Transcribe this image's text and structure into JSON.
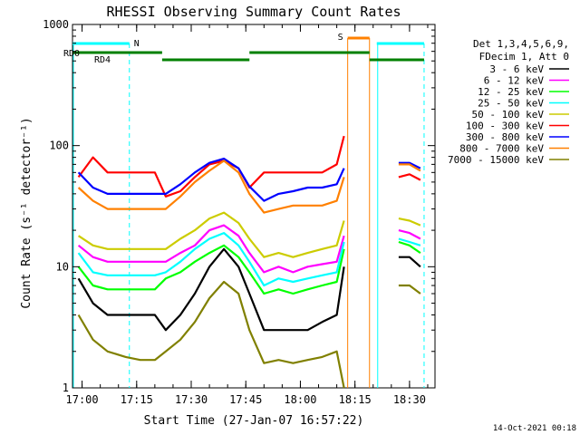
{
  "chart_data": {
    "type": "line",
    "title": "RHESSI Observing Summary Count Rates",
    "xlabel": "Start Time (27-Jan-07 16:57:22)",
    "ylabel": "Count Rate (s⁻¹ detector⁻¹)",
    "yscale": "log",
    "ylim": [
      1,
      1000
    ],
    "xlim": [
      "16:57:22",
      "18:37:00"
    ],
    "xticks": [
      "17:00",
      "17:15",
      "17:30",
      "17:45",
      "18:00",
      "18:15",
      "18:30"
    ],
    "yticks": [
      "1",
      "10",
      "100",
      "1000"
    ],
    "footer": "14-Oct-2021 00:18",
    "legend": {
      "position": "right",
      "header": [
        "Det 1,3,4,5,6,9,",
        "FDecim 1, Att 0"
      ],
      "entries": [
        {
          "label": "3 - 6 keV",
          "color": "#000000"
        },
        {
          "label": "6 - 12 keV",
          "color": "#ff00ff"
        },
        {
          "label": "12 - 25 keV",
          "color": "#00ff00"
        },
        {
          "label": "25 - 50 keV",
          "color": "#00ffff"
        },
        {
          "label": "50 - 100 keV",
          "color": "#cccc00"
        },
        {
          "label": "100 - 300 keV",
          "color": "#ff0000"
        },
        {
          "label": "300 - 800 keV",
          "color": "#0000ff"
        },
        {
          "label": "800 - 7000 keV",
          "color": "#ff8000"
        },
        {
          "label": "7000 - 15000 keV",
          "color": "#808000"
        }
      ]
    },
    "flags": {
      "saa_label": "S",
      "night_label": "N",
      "rd0_label": "RD0",
      "rd4_label": "RD4",
      "night_color": "#00ffff",
      "saa_color": "#ff8000",
      "decim_color": "#008000"
    },
    "x": [
      "16:59",
      "17:03",
      "17:07",
      "17:12",
      "17:16",
      "17:20",
      "17:23",
      "17:27",
      "17:31",
      "17:35",
      "17:39",
      "17:43",
      "17:46",
      "17:50",
      "17:54",
      "17:58",
      "18:02",
      "18:06",
      "18:10",
      "18:12",
      "18:24",
      "18:27",
      "18:30",
      "18:33"
    ],
    "series": [
      {
        "name": "3 - 6 keV",
        "values": [
          8,
          5,
          4,
          4,
          4,
          4,
          3,
          4,
          6,
          10,
          14,
          10,
          6,
          3,
          3,
          3,
          3,
          3.5,
          4,
          10,
          null,
          12,
          12,
          10
        ]
      },
      {
        "name": "6 - 12 keV",
        "values": [
          15,
          12,
          11,
          11,
          11,
          11,
          11,
          13,
          15,
          20,
          22,
          18,
          13,
          9,
          10,
          9,
          10,
          10.5,
          11,
          18,
          null,
          20,
          19,
          17
        ]
      },
      {
        "name": "12 - 25 keV",
        "values": [
          10,
          7,
          6.5,
          6.5,
          6.5,
          6.5,
          8,
          9,
          11,
          13,
          15,
          12,
          9,
          6,
          6.5,
          6,
          6.5,
          7,
          7.5,
          14,
          null,
          16,
          15,
          13
        ]
      },
      {
        "name": "25 - 50 keV",
        "values": [
          13,
          9,
          8.5,
          8.5,
          8.5,
          8.5,
          9,
          11,
          14,
          17,
          19,
          15,
          11,
          7,
          8,
          7.5,
          8,
          8.5,
          9,
          16,
          null,
          17,
          16,
          15
        ]
      },
      {
        "name": "50 - 100 keV",
        "values": [
          18,
          15,
          14,
          14,
          14,
          14,
          14,
          17,
          20,
          25,
          28,
          23,
          17,
          12,
          13,
          12,
          13,
          14,
          15,
          24,
          null,
          25,
          24,
          22
        ]
      },
      {
        "name": "100 - 300 keV",
        "values": [
          55,
          80,
          60,
          60,
          60,
          60,
          38,
          42,
          55,
          70,
          75,
          65,
          45,
          60,
          60,
          60,
          60,
          60,
          70,
          120,
          null,
          55,
          58,
          52
        ]
      },
      {
        "name": "300 - 800 keV",
        "values": [
          60,
          45,
          40,
          40,
          40,
          40,
          40,
          48,
          60,
          72,
          78,
          65,
          46,
          35,
          40,
          42,
          45,
          45,
          48,
          65,
          null,
          72,
          72,
          65
        ]
      },
      {
        "name": "800 - 7000 keV",
        "values": [
          45,
          35,
          30,
          30,
          30,
          30,
          30,
          38,
          50,
          62,
          75,
          60,
          40,
          28,
          30,
          32,
          32,
          32,
          35,
          55,
          null,
          70,
          70,
          62
        ]
      },
      {
        "name": "7000 - 15000 keV",
        "values": [
          4,
          2.5,
          2,
          1.8,
          1.7,
          1.7,
          2,
          2.5,
          3.5,
          5.5,
          7.5,
          6,
          3,
          1.6,
          1.7,
          1.6,
          1.7,
          1.8,
          2,
          1,
          null,
          7,
          7,
          6
        ]
      }
    ]
  }
}
